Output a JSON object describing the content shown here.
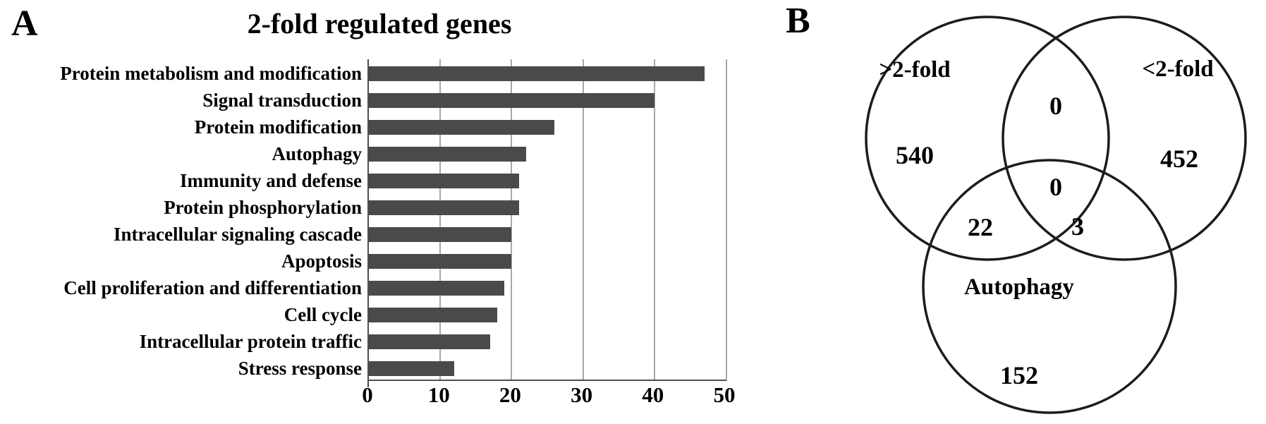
{
  "panel_a": {
    "label": "A",
    "chart_data": {
      "type": "bar",
      "orientation": "horizontal",
      "title": "2-fold regulated genes",
      "categories": [
        "Protein metabolism and modification",
        "Signal transduction",
        "Protein modification",
        "Autophagy",
        "Immunity and defense",
        "Protein phosphorylation",
        "Intracellular signaling cascade",
        "Apoptosis",
        "Cell proliferation and differentiation",
        "Cell cycle",
        "Intracellular protein traffic",
        "Stress response"
      ],
      "values": [
        47,
        40,
        26,
        22,
        21,
        21,
        20,
        20,
        19,
        18,
        17,
        12
      ],
      "xlabel": "",
      "ylabel": "",
      "x_ticks": [
        0,
        10,
        20,
        30,
        40,
        50
      ],
      "xlim": [
        0,
        50
      ],
      "grid": true,
      "legend": "none",
      "bar_color": "#4a4a4a",
      "gridline_color": "#a8a8a8",
      "axis_color": "#4f4f4f"
    }
  },
  "panel_b": {
    "label": "B",
    "venn": {
      "type": "venn3",
      "sets": [
        {
          "name": ">2-fold",
          "count": "540"
        },
        {
          "name": "<2-fold",
          "count": "452"
        },
        {
          "name": "Autophagy",
          "count": "152"
        }
      ],
      "overlaps": [
        {
          "name": "gt2-and-lt2",
          "count": "0"
        },
        {
          "name": "all-three",
          "count": "0"
        },
        {
          "name": "gt2-and-autophagy",
          "count": "22"
        },
        {
          "name": "lt2-and-autophagy",
          "count": "3"
        }
      ],
      "circle_color": "#1c1c1c"
    }
  }
}
